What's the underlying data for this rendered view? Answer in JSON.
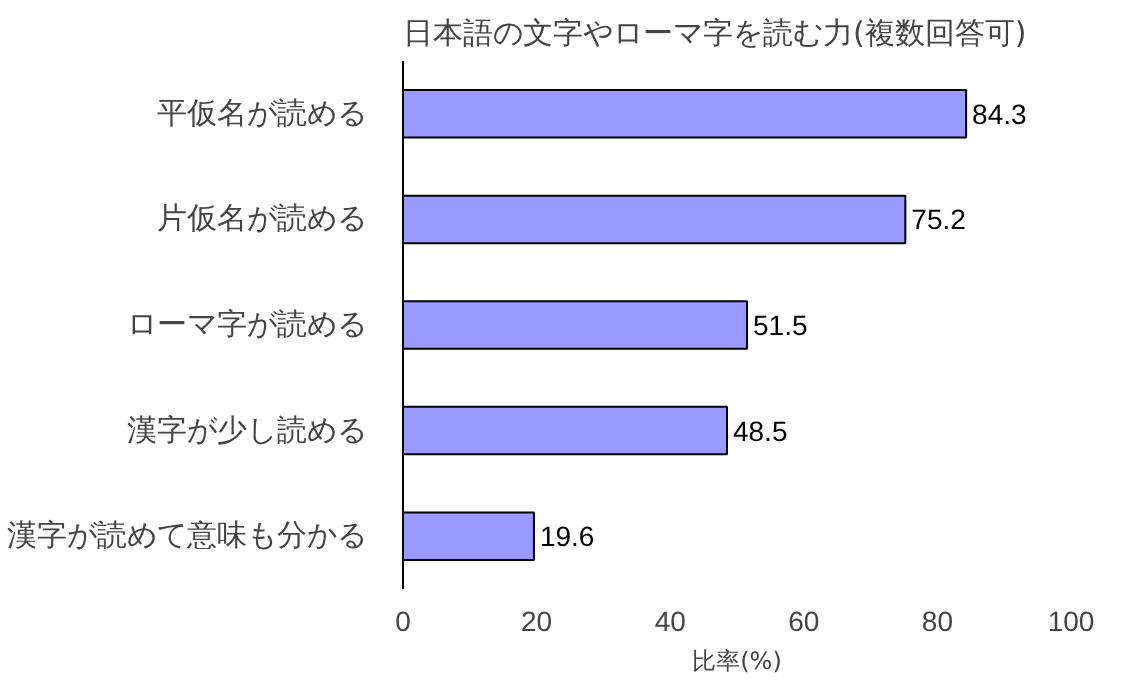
{
  "chart_data": {
    "type": "bar",
    "orientation": "horizontal",
    "title": "日本語の文字やローマ字を読む力(複数回答可)",
    "xlabel": "比率(%)",
    "categories": [
      "平仮名が読める",
      "片仮名が読める",
      "ローマ字が読める",
      "漢字が少し読める",
      "漢字が読めて意味も分かる"
    ],
    "values": [
      84.3,
      75.2,
      51.5,
      48.5,
      19.6
    ],
    "color": "#9999ff",
    "xlim": [
      0,
      100
    ],
    "xticks": [
      0,
      20,
      40,
      60,
      80,
      100
    ],
    "data_labels": true,
    "grid": false
  }
}
